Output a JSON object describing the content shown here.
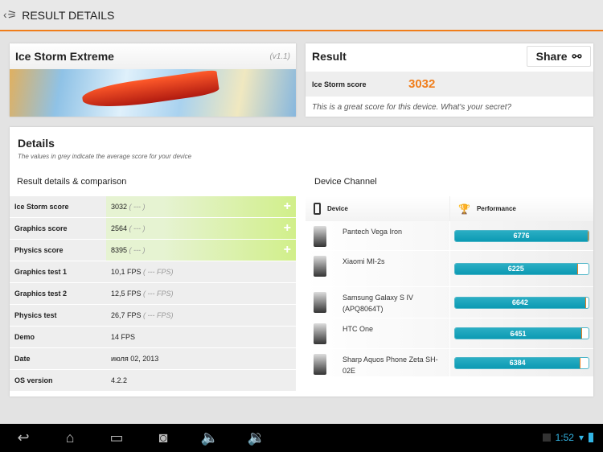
{
  "header": {
    "title": "RESULT DETAILS",
    "logo_icon": "3dmark-logo-icon"
  },
  "benchmark": {
    "title": "Ice Storm Extreme",
    "version": "(v1.1)"
  },
  "result": {
    "title": "Result",
    "share_label": "Share",
    "score_label": "Ice Storm score",
    "score": "3032",
    "message": "This is a great score for this device. What's your secret?",
    "score_color": "#f07d1a"
  },
  "details": {
    "title": "Details",
    "subtitle": "The values in grey indicate the average score for your device",
    "comparison_title": "Result details & comparison",
    "rows": [
      {
        "label": "Ice Storm score",
        "value": "3032",
        "avg": "( --- )"
      },
      {
        "label": "Graphics score",
        "value": "2564",
        "avg": "( --- )"
      },
      {
        "label": "Physics score",
        "value": "8395",
        "avg": "( --- )"
      },
      {
        "label": "Graphics test 1",
        "value": "10,1 FPS",
        "avg": "( --- FPS)"
      },
      {
        "label": "Graphics test 2",
        "value": "12,5 FPS",
        "avg": "( --- FPS)"
      },
      {
        "label": "Physics test",
        "value": "26,7 FPS",
        "avg": "( --- FPS)"
      },
      {
        "label": "Demo",
        "value": "14 FPS",
        "avg": ""
      },
      {
        "label": "Date",
        "value": "июля 02, 2013",
        "avg": ""
      },
      {
        "label": "OS version",
        "value": "4.2.2",
        "avg": ""
      }
    ]
  },
  "device_channel": {
    "title": "Device Channel",
    "col_device": "Device",
    "col_performance": "Performance",
    "devices": [
      {
        "name": "Pantech Vega Iron",
        "score": 6776
      },
      {
        "name": "Xiaomi MI-2s",
        "score": 6225
      },
      {
        "name": "Samsung Galaxy S IV (APQ8064T)",
        "score": 6642
      },
      {
        "name": "HTC One",
        "score": 6451
      },
      {
        "name": "Sharp Aquos Phone Zeta SH-02E",
        "score": 6384
      }
    ]
  },
  "statusbar": {
    "time": "1:52"
  }
}
